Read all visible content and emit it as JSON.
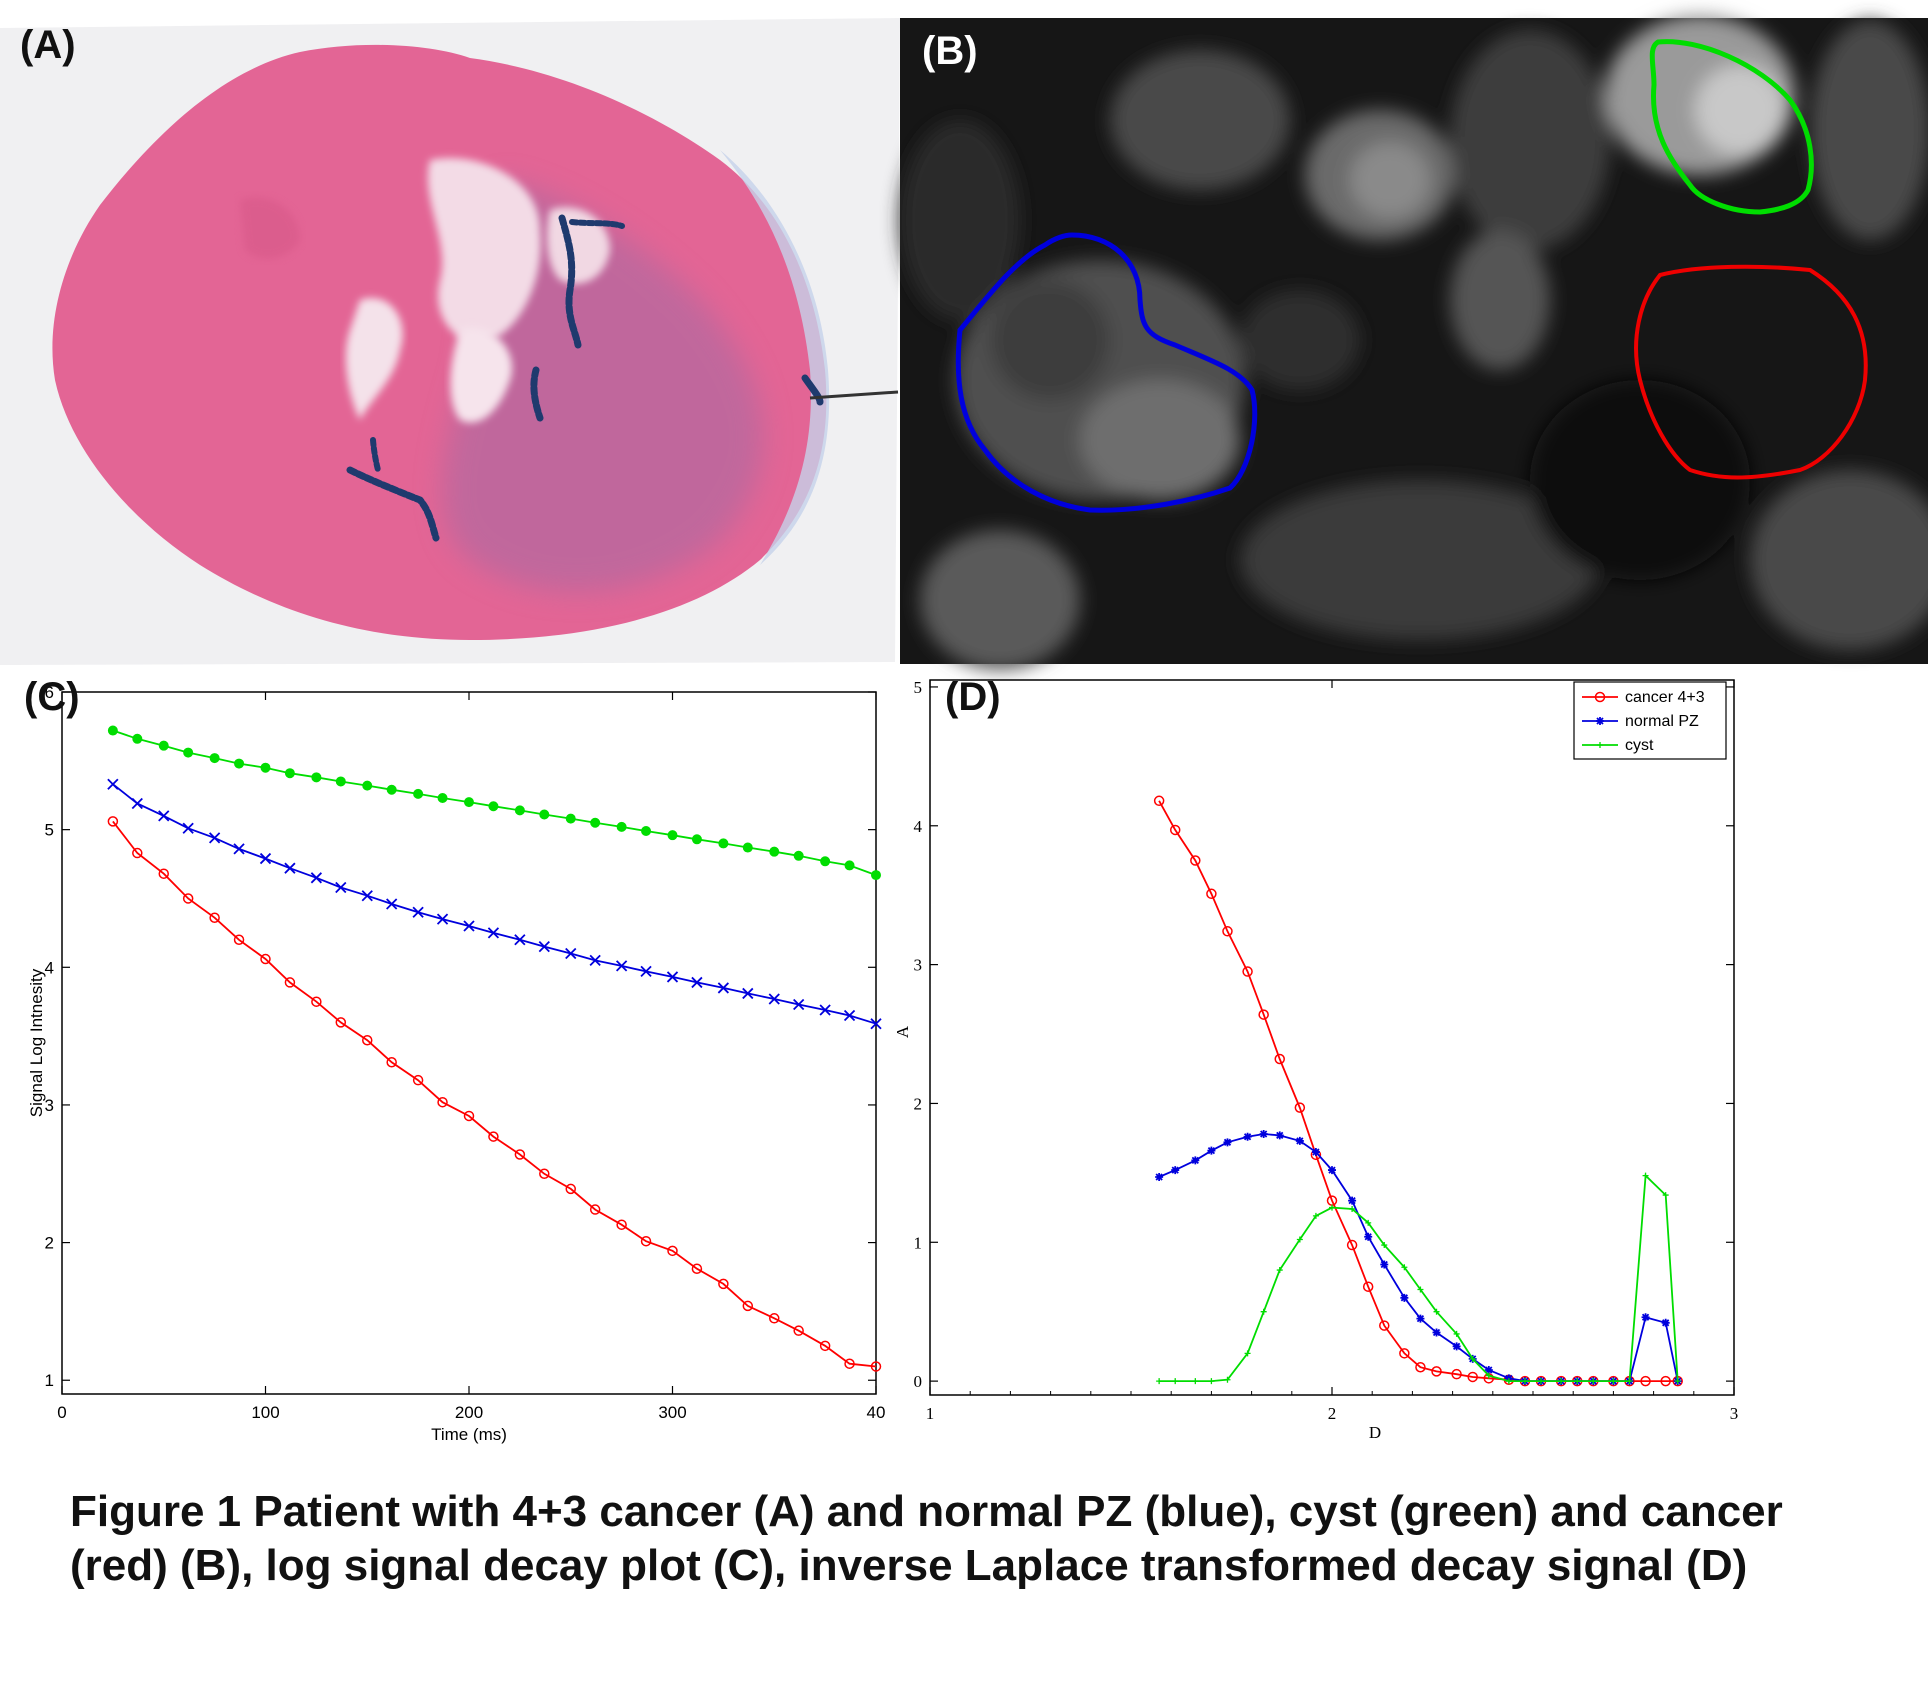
{
  "panel_labels": {
    "a": "(A)",
    "b": "(B)",
    "c": "(C)",
    "d": "(D)"
  },
  "caption": "Figure 1 Patient with 4+3 cancer (A) and normal PZ  (blue), cyst (green) and cancer (red) (B), log signal decay plot (C), inverse Laplace transformed decay signal (D)",
  "colors": {
    "cancer": "#ff0000",
    "normal": "#0000dd",
    "cyst": "#00dd00",
    "tissue": "#e36595",
    "ink": "#1f3a6e"
  },
  "chart_data": [
    {
      "type": "line",
      "panel": "(C)",
      "xlabel": "Time (ms)",
      "ylabel": "Signal Log Intnesity",
      "xlim": [
        0,
        400
      ],
      "ylim": [
        0.9,
        6
      ],
      "xticks": [
        "0",
        "100",
        "200",
        "300",
        "40"
      ],
      "yticks": [
        "1",
        "2",
        "3",
        "4",
        "5",
        "6"
      ],
      "grid": false,
      "x": [
        25,
        37,
        50,
        62,
        75,
        87,
        100,
        112,
        125,
        137,
        150,
        162,
        175,
        187,
        200,
        212,
        225,
        237,
        250,
        262,
        275,
        287,
        300,
        312,
        325,
        337,
        350,
        362,
        375,
        387,
        400
      ],
      "series": [
        {
          "color": "#00dd00",
          "marker": "dot",
          "values": [
            5.72,
            5.66,
            5.61,
            5.56,
            5.52,
            5.48,
            5.45,
            5.41,
            5.38,
            5.35,
            5.32,
            5.29,
            5.26,
            5.23,
            5.2,
            5.17,
            5.14,
            5.11,
            5.08,
            5.05,
            5.02,
            4.99,
            4.96,
            4.93,
            4.9,
            4.87,
            4.84,
            4.81,
            4.77,
            4.74,
            4.67
          ]
        },
        {
          "color": "#0000dd",
          "marker": "x",
          "values": [
            5.33,
            5.19,
            5.1,
            5.01,
            4.94,
            4.86,
            4.79,
            4.72,
            4.65,
            4.58,
            4.52,
            4.46,
            4.4,
            4.35,
            4.3,
            4.25,
            4.2,
            4.15,
            4.1,
            4.05,
            4.01,
            3.97,
            3.93,
            3.89,
            3.85,
            3.81,
            3.77,
            3.73,
            3.69,
            3.65,
            3.59
          ]
        },
        {
          "color": "#ff0000",
          "marker": "circle",
          "values": [
            5.06,
            4.83,
            4.68,
            4.5,
            4.36,
            4.2,
            4.06,
            3.89,
            3.75,
            3.6,
            3.47,
            3.31,
            3.18,
            3.02,
            2.92,
            2.77,
            2.64,
            2.5,
            2.39,
            2.24,
            2.13,
            2.01,
            1.94,
            1.81,
            1.7,
            1.54,
            1.45,
            1.36,
            1.25,
            1.12,
            1.1
          ]
        }
      ]
    },
    {
      "type": "line",
      "panel": "(D)",
      "xlabel": "D",
      "ylabel": "A",
      "xlim": [
        1,
        3
      ],
      "ylim": [
        -0.1,
        5.05
      ],
      "xticks": [
        "1",
        "2",
        "3"
      ],
      "yticks": [
        "0",
        "1",
        "2",
        "3",
        "4",
        "5"
      ],
      "grid": false,
      "legend_position": "top-right",
      "x": [
        1.57,
        1.61,
        1.66,
        1.7,
        1.74,
        1.79,
        1.83,
        1.87,
        1.92,
        1.96,
        2.0,
        2.05,
        2.09,
        2.13,
        2.18,
        2.22,
        2.26,
        2.31,
        2.35,
        2.39,
        2.44,
        2.48,
        2.52,
        2.57,
        2.61,
        2.65,
        2.7,
        2.74,
        2.78,
        2.83,
        2.86
      ],
      "series": [
        {
          "name": "cancer 4+3",
          "color": "#ff0000",
          "marker": "circle",
          "values": [
            4.18,
            3.97,
            3.75,
            3.51,
            3.24,
            2.95,
            2.64,
            2.32,
            1.97,
            1.63,
            1.3,
            0.98,
            0.68,
            0.4,
            0.2,
            0.1,
            0.07,
            0.05,
            0.03,
            0.02,
            0.01,
            0,
            0,
            0,
            0,
            0,
            0,
            0,
            0,
            0,
            0
          ]
        },
        {
          "name": "normal PZ",
          "color": "#0000dd",
          "marker": "star",
          "values": [
            1.47,
            1.52,
            1.59,
            1.66,
            1.72,
            1.76,
            1.78,
            1.77,
            1.73,
            1.65,
            1.52,
            1.3,
            1.04,
            0.84,
            0.6,
            0.45,
            0.35,
            0.25,
            0.16,
            0.08,
            0.02,
            0,
            0,
            0,
            0,
            0,
            0,
            0,
            0.46,
            0.42,
            0
          ]
        },
        {
          "name": "cyst",
          "color": "#00dd00",
          "marker": "plus",
          "values": [
            0,
            0,
            0,
            0,
            0.01,
            0.2,
            0.5,
            0.8,
            1.02,
            1.19,
            1.25,
            1.24,
            1.14,
            0.98,
            0.82,
            0.66,
            0.5,
            0.34,
            0.16,
            0.04,
            0,
            0,
            0,
            0,
            0,
            0,
            0,
            0,
            1.48,
            1.34,
            0
          ]
        }
      ]
    }
  ]
}
